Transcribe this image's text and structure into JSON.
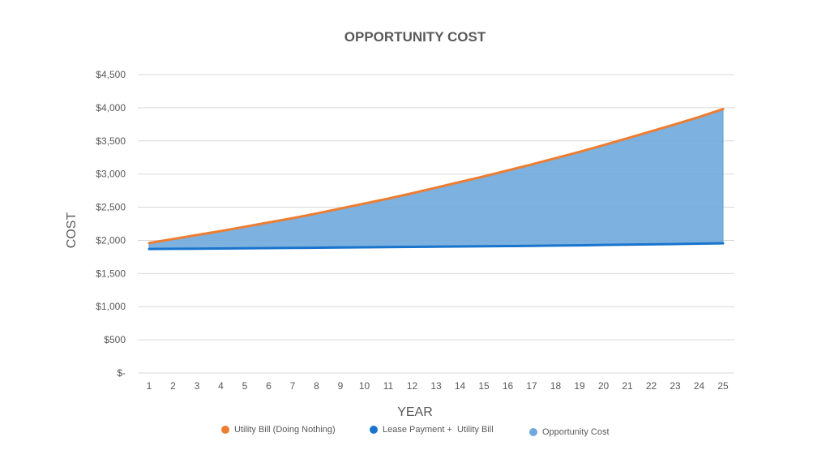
{
  "chart_data": {
    "type": "area",
    "title": "OPPORTUNITY COST",
    "xlabel": "YEAR",
    "ylabel": "COST",
    "x": [
      1,
      2,
      3,
      4,
      5,
      6,
      7,
      8,
      9,
      10,
      11,
      12,
      13,
      14,
      15,
      16,
      17,
      18,
      19,
      20,
      21,
      22,
      23,
      24,
      25
    ],
    "ylim": [
      0,
      4500
    ],
    "yticks": [
      0,
      500,
      1000,
      1500,
      2000,
      2500,
      3000,
      3500,
      4000,
      4500
    ],
    "ytick_labels": [
      "$-",
      "$500",
      "$1,000",
      "$1,500",
      "$2,000",
      "$2,500",
      "$3,000",
      "$3,500",
      "$4,000",
      "$4,500"
    ],
    "grid": true,
    "legend_position": "bottom",
    "series": [
      {
        "name": "Utility Bill (Doing Nothing)",
        "kind": "line",
        "color": "#ED7D31",
        "values": [
          1960,
          2020,
          2080,
          2140,
          2205,
          2270,
          2335,
          2405,
          2480,
          2555,
          2630,
          2710,
          2795,
          2880,
          2965,
          3055,
          3145,
          3240,
          3335,
          3435,
          3540,
          3645,
          3750,
          3860,
          3980
        ]
      },
      {
        "name": "Lease Payment +  Utility Bill",
        "kind": "line",
        "color": "#1874CD",
        "values": [
          1870,
          1872,
          1874,
          1877,
          1880,
          1883,
          1886,
          1889,
          1892,
          1895,
          1898,
          1901,
          1904,
          1907,
          1910,
          1913,
          1917,
          1921,
          1925,
          1930,
          1935,
          1940,
          1945,
          1950,
          1955
        ]
      },
      {
        "name": "Opportunity Cost",
        "kind": "area",
        "color": "#6FA8DC"
      }
    ]
  }
}
